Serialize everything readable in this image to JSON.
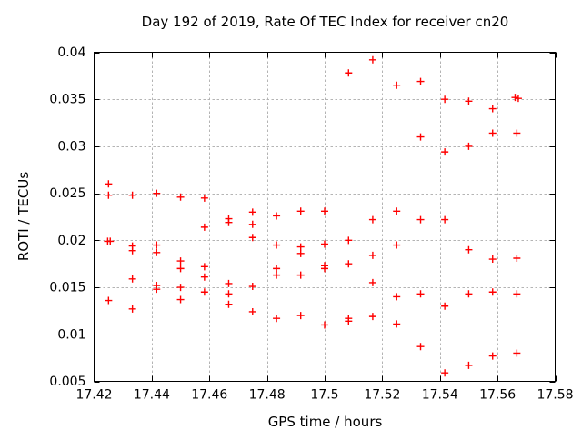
{
  "page": {
    "background": "#ffffff"
  },
  "chart_data": {
    "type": "scatter",
    "title": "Day 192 of 2019, Rate Of TEC Index for receiver cn20",
    "xlabel": "GPS time / hours",
    "ylabel": "ROTI / TECUs",
    "xlim": [
      17.42,
      17.58
    ],
    "ylim": [
      0.005,
      0.04
    ],
    "x_tick_values": [
      17.42,
      17.44,
      17.46,
      17.48,
      17.5,
      17.52,
      17.54,
      17.56,
      17.58
    ],
    "x_tick_labels": [
      "17.42",
      "17.44",
      "17.46",
      "17.48",
      "17.5",
      "17.52",
      "17.54",
      "17.56",
      "17.58"
    ],
    "y_tick_values": [
      0.005,
      0.01,
      0.015,
      0.02,
      0.025,
      0.03,
      0.035,
      0.04
    ],
    "y_tick_labels": [
      "0.005",
      "0.01",
      "0.015",
      "0.02",
      "0.025",
      "0.03",
      "0.035",
      "0.04"
    ],
    "grid": true,
    "legend": false,
    "marker": "plus",
    "marker_color": "#ff0000",
    "grid_color": "#b4b4b4",
    "border_color": "#000000",
    "series": [
      {
        "name": "ROTI",
        "points": [
          [
            17.425,
            0.026
          ],
          [
            17.425,
            0.0248
          ],
          [
            17.4247,
            0.0199
          ],
          [
            17.4256,
            0.0199
          ],
          [
            17.425,
            0.0136
          ],
          [
            17.4333,
            0.0248
          ],
          [
            17.4333,
            0.0194
          ],
          [
            17.4333,
            0.0189
          ],
          [
            17.4333,
            0.0159
          ],
          [
            17.4333,
            0.0127
          ],
          [
            17.4417,
            0.025
          ],
          [
            17.4417,
            0.0195
          ],
          [
            17.4417,
            0.0187
          ],
          [
            17.4417,
            0.0152
          ],
          [
            17.4417,
            0.0148
          ],
          [
            17.45,
            0.0246
          ],
          [
            17.45,
            0.0178
          ],
          [
            17.45,
            0.017
          ],
          [
            17.45,
            0.015
          ],
          [
            17.45,
            0.0137
          ],
          [
            17.4583,
            0.0245
          ],
          [
            17.4583,
            0.0214
          ],
          [
            17.4583,
            0.0172
          ],
          [
            17.4583,
            0.0161
          ],
          [
            17.4583,
            0.0145
          ],
          [
            17.4667,
            0.0223
          ],
          [
            17.4667,
            0.0219
          ],
          [
            17.4667,
            0.0154
          ],
          [
            17.4667,
            0.0143
          ],
          [
            17.4667,
            0.0132
          ],
          [
            17.475,
            0.023
          ],
          [
            17.475,
            0.0217
          ],
          [
            17.475,
            0.0203
          ],
          [
            17.475,
            0.0151
          ],
          [
            17.475,
            0.0124
          ],
          [
            17.4833,
            0.0226
          ],
          [
            17.4833,
            0.0195
          ],
          [
            17.4833,
            0.017
          ],
          [
            17.4833,
            0.0163
          ],
          [
            17.4833,
            0.0117
          ],
          [
            17.4917,
            0.0231
          ],
          [
            17.4917,
            0.0193
          ],
          [
            17.4917,
            0.0186
          ],
          [
            17.4917,
            0.0163
          ],
          [
            17.4917,
            0.012
          ],
          [
            17.5,
            0.0231
          ],
          [
            17.5,
            0.0196
          ],
          [
            17.5,
            0.0173
          ],
          [
            17.5,
            0.017
          ],
          [
            17.5,
            0.011
          ],
          [
            17.5083,
            0.0378
          ],
          [
            17.5083,
            0.02
          ],
          [
            17.5083,
            0.0175
          ],
          [
            17.5083,
            0.0117
          ],
          [
            17.5083,
            0.0114
          ],
          [
            17.5167,
            0.0392
          ],
          [
            17.5167,
            0.0222
          ],
          [
            17.5167,
            0.0184
          ],
          [
            17.5167,
            0.0155
          ],
          [
            17.5167,
            0.0119
          ],
          [
            17.525,
            0.0365
          ],
          [
            17.525,
            0.0231
          ],
          [
            17.525,
            0.0195
          ],
          [
            17.525,
            0.014
          ],
          [
            17.525,
            0.0111
          ],
          [
            17.5333,
            0.0369
          ],
          [
            17.5333,
            0.031
          ],
          [
            17.5333,
            0.0222
          ],
          [
            17.5333,
            0.0143
          ],
          [
            17.5333,
            0.0087
          ],
          [
            17.5417,
            0.035
          ],
          [
            17.5417,
            0.0294
          ],
          [
            17.5417,
            0.0222
          ],
          [
            17.5417,
            0.013
          ],
          [
            17.5417,
            0.0059
          ],
          [
            17.55,
            0.0348
          ],
          [
            17.55,
            0.03
          ],
          [
            17.55,
            0.019
          ],
          [
            17.55,
            0.0143
          ],
          [
            17.55,
            0.0067
          ],
          [
            17.5583,
            0.034
          ],
          [
            17.5583,
            0.0314
          ],
          [
            17.5583,
            0.018
          ],
          [
            17.5583,
            0.0145
          ],
          [
            17.5583,
            0.0077
          ],
          [
            17.5661,
            0.0352
          ],
          [
            17.5672,
            0.0351
          ],
          [
            17.5667,
            0.0314
          ],
          [
            17.5667,
            0.0181
          ],
          [
            17.5667,
            0.0143
          ],
          [
            17.5667,
            0.008
          ]
        ]
      }
    ]
  }
}
